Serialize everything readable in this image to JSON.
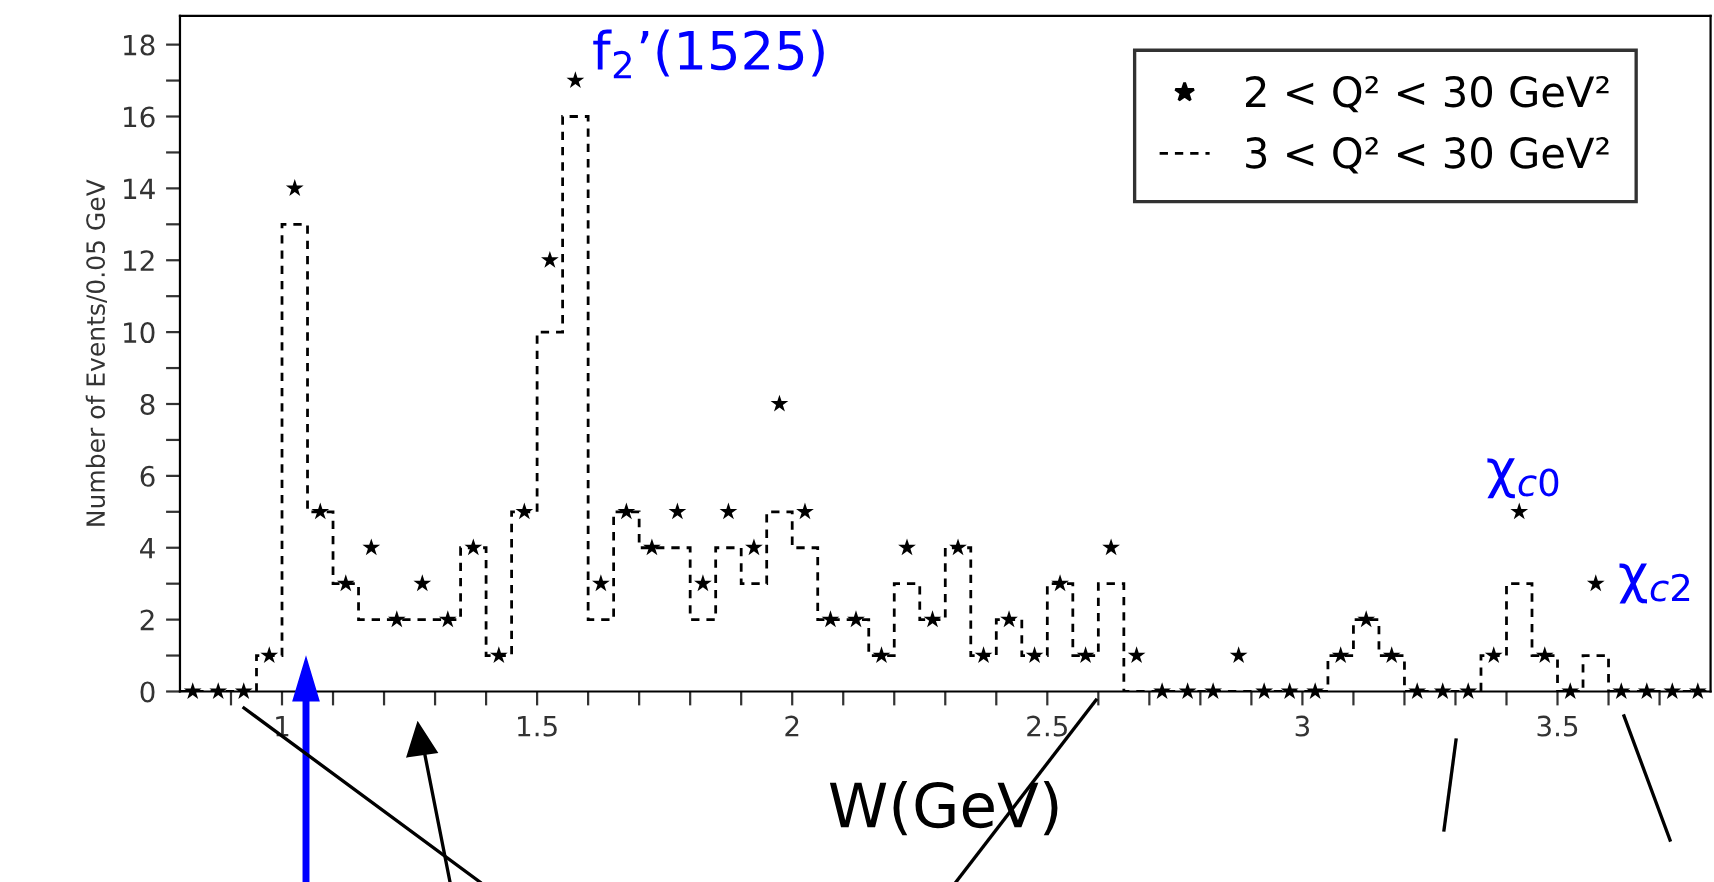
{
  "chart_data": {
    "type": "histogram",
    "xlabel": "W(GeV)",
    "ylabel": "Number of Events/0.05 GeV",
    "bins": [
      0.8,
      0.85,
      0.9,
      0.95,
      1.0,
      1.05,
      1.1,
      1.15,
      1.2,
      1.25,
      1.3,
      1.35,
      1.4,
      1.45,
      1.5,
      1.55,
      1.6,
      1.65,
      1.7,
      1.75,
      1.8,
      1.85,
      1.9,
      1.95,
      2.0,
      2.05,
      2.1,
      2.15,
      2.2,
      2.25,
      2.3,
      2.35,
      2.4,
      2.45,
      2.5,
      2.55,
      2.6,
      2.65,
      2.7,
      2.75,
      2.8,
      2.85,
      2.9,
      2.95,
      3.0,
      3.05,
      3.1,
      3.15,
      3.2,
      3.25,
      3.3,
      3.35,
      3.4,
      3.45,
      3.5,
      3.55,
      3.6,
      3.65,
      3.7,
      3.75,
      3.8
    ],
    "series": [
      {
        "name": "2 < Q² < 30 GeV²",
        "type": "scatter",
        "marker": "star",
        "color": "#000000",
        "x": [
          0.825,
          0.875,
          0.925,
          0.975,
          1.025,
          1.075,
          1.125,
          1.175,
          1.225,
          1.275,
          1.325,
          1.375,
          1.425,
          1.475,
          1.525,
          1.575,
          1.625,
          1.675,
          1.725,
          1.775,
          1.825,
          1.875,
          1.925,
          1.975,
          2.025,
          2.075,
          2.125,
          2.175,
          2.225,
          2.275,
          2.325,
          2.375,
          2.425,
          2.475,
          2.525,
          2.575,
          2.625,
          2.675,
          2.725,
          2.775,
          2.825,
          2.875,
          2.925,
          2.975,
          3.025,
          3.075,
          3.125,
          3.175,
          3.225,
          3.275,
          3.325,
          3.375,
          3.425,
          3.475,
          3.525,
          3.575,
          3.625,
          3.675,
          3.725,
          3.775
        ],
        "values": [
          0,
          0,
          0,
          1,
          14,
          5,
          3,
          4,
          2,
          3,
          2,
          4,
          1,
          5,
          12,
          17,
          3,
          5,
          4,
          5,
          3,
          5,
          4,
          8,
          5,
          2,
          2,
          1,
          4,
          2,
          4,
          1,
          2,
          1,
          3,
          1,
          4,
          1,
          0,
          0,
          0,
          1,
          0,
          0,
          0,
          1,
          2,
          1,
          0,
          0,
          0,
          1,
          5,
          1,
          0,
          3,
          0,
          0,
          0,
          0
        ]
      },
      {
        "name": "3 < Q² < 30 GeV²",
        "line_style": "dashed",
        "color": "#000000",
        "values": [
          0,
          0,
          0,
          1,
          13,
          5,
          3,
          2,
          2,
          2,
          2,
          4,
          1,
          5,
          10,
          16,
          2,
          5,
          4,
          4,
          2,
          4,
          3,
          5,
          4,
          2,
          2,
          1,
          3,
          2,
          4,
          1,
          2,
          1,
          3,
          1,
          3,
          0,
          0,
          0,
          0,
          0,
          0,
          0,
          0,
          1,
          2,
          1,
          0,
          0,
          0,
          1,
          3,
          1,
          0,
          1,
          0,
          0,
          0,
          0
        ]
      }
    ],
    "xlim": [
      0.8,
      3.8
    ],
    "xticks": [
      {
        "value": 0.9,
        "label": null
      },
      {
        "value": 1.0,
        "label": "1"
      },
      {
        "value": 1.1,
        "label": null
      },
      {
        "value": 1.2,
        "label": null
      },
      {
        "value": 1.3,
        "label": null
      },
      {
        "value": 1.4,
        "label": null
      },
      1.5,
      {
        "value": 1.6,
        "label": null
      },
      {
        "value": 1.7,
        "label": null
      },
      {
        "value": 1.8,
        "label": null
      },
      {
        "value": 1.9,
        "label": null
      },
      {
        "value": 2.0,
        "label": "2"
      },
      {
        "value": 2.1,
        "label": null
      },
      {
        "value": 2.2,
        "label": null
      },
      {
        "value": 2.3,
        "label": null
      },
      {
        "value": 2.4,
        "label": null
      },
      2.5,
      {
        "value": 2.6,
        "label": null
      },
      {
        "value": 2.7,
        "label": null
      },
      {
        "value": 2.8,
        "label": null
      },
      {
        "value": 2.9,
        "label": null
      },
      {
        "value": 3.0,
        "label": "3"
      },
      {
        "value": 3.1,
        "label": null
      },
      {
        "value": 3.2,
        "label": null
      },
      {
        "value": 3.3,
        "label": null
      },
      {
        "value": 3.4,
        "label": null
      },
      3.5,
      {
        "value": 3.6,
        "label": null
      },
      {
        "value": 3.7,
        "label": null
      }
    ],
    "ylim": [
      0,
      18.8
    ],
    "yticks": [
      0,
      {
        "value": 1,
        "label": null
      },
      2,
      {
        "value": 3,
        "label": null
      },
      4,
      {
        "value": 5,
        "label": null
      },
      6,
      {
        "value": 7,
        "label": null
      },
      8,
      {
        "value": 9,
        "label": null
      },
      10,
      {
        "value": 11,
        "label": null
      },
      12,
      {
        "value": 13,
        "label": null
      },
      14,
      {
        "value": 15,
        "label": null
      },
      16,
      {
        "value": 17,
        "label": null
      },
      18
    ],
    "annotations": [
      {
        "text": "f$_{2}$’(1525)",
        "x": 1.575,
        "y": 17
      },
      {
        "text": "χ$_{c0}$",
        "x": 3.425,
        "y": 5
      },
      {
        "text": "χ$_{c2}$",
        "x": 3.575,
        "y": 3
      }
    ],
    "legend": "top right",
    "grid": false
  }
}
